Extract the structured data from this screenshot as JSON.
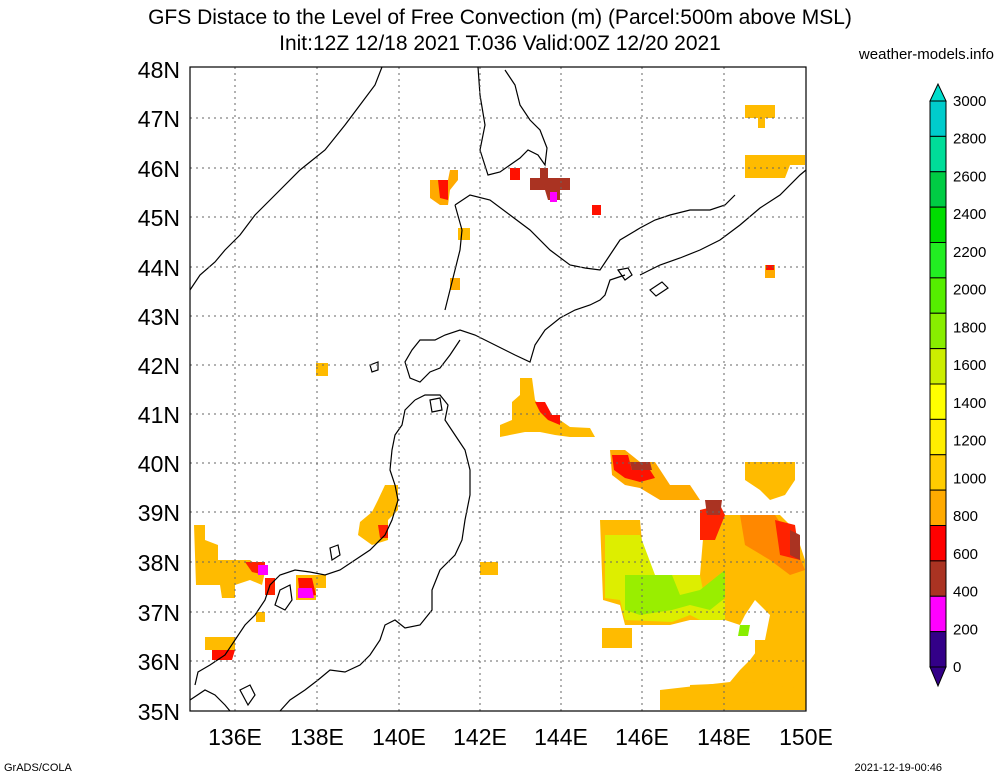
{
  "title": {
    "line1": "GFS Distace to the Level of Free Convection (m) (Parcel:500m above MSL)",
    "line2": "Init:12Z 12/18 2021 T:036 Valid:00Z 12/20 2021"
  },
  "credit": "weather-models.info",
  "footer": {
    "left": "GrADS/COLA",
    "right": "2021-12-19-00:46"
  },
  "lat_labels": [
    "48N",
    "47N",
    "46N",
    "45N",
    "44N",
    "43N",
    "42N",
    "41N",
    "40N",
    "39N",
    "38N",
    "37N",
    "36N",
    "35N"
  ],
  "lon_labels": [
    "136E",
    "138E",
    "140E",
    "142E",
    "144E",
    "146E",
    "148E",
    "150E"
  ],
  "colorbar": {
    "labels": [
      "3000",
      "2800",
      "2600",
      "2400",
      "2200",
      "2000",
      "1800",
      "1600",
      "1400",
      "1200",
      "1000",
      "800",
      "600",
      "400",
      "200",
      "0"
    ],
    "colors": [
      "#00cccc",
      "#00dd99",
      "#00cc44",
      "#00dd00",
      "#22ee22",
      "#55ee00",
      "#88ee00",
      "#ccee00",
      "#ffff00",
      "#ffee00",
      "#ffcc00",
      "#ffaa00",
      "#ff0000",
      "#aa3322",
      "#ff00ff",
      "#330088"
    ]
  }
}
